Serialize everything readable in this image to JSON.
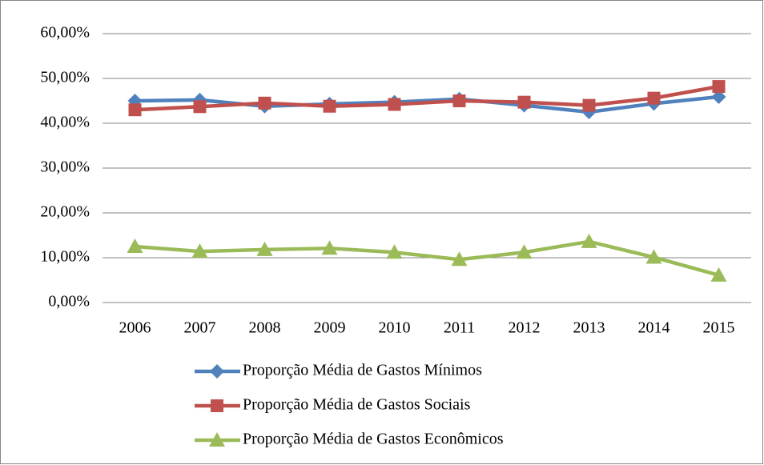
{
  "chart_data": {
    "type": "line",
    "categories": [
      "2006",
      "2007",
      "2008",
      "2009",
      "2010",
      "2011",
      "2012",
      "2013",
      "2014",
      "2015"
    ],
    "series": [
      {
        "name": "Proporção Média de Gastos Mínimos",
        "color": "#4f81bd",
        "marker": "diamond",
        "values": [
          45.0,
          45.2,
          43.8,
          44.3,
          44.7,
          45.4,
          44.0,
          42.5,
          44.4,
          45.9
        ]
      },
      {
        "name": "Proporção Média de Gastos Sociais",
        "color": "#c0504d",
        "marker": "square",
        "values": [
          43.0,
          43.7,
          44.5,
          43.8,
          44.2,
          45.0,
          44.7,
          44.0,
          45.6,
          48.2
        ]
      },
      {
        "name": "Proporção Média de Gastos Econômicos",
        "color": "#9bbb59",
        "marker": "triangle",
        "values": [
          12.5,
          11.4,
          11.8,
          12.1,
          11.2,
          9.6,
          11.2,
          13.6,
          10.1,
          6.1
        ]
      }
    ],
    "ylim": [
      0,
      60
    ],
    "yticks": [
      {
        "value": 0,
        "label": "0,00%"
      },
      {
        "value": 10,
        "label": "10,00%"
      },
      {
        "value": 20,
        "label": "20,00%"
      },
      {
        "value": 30,
        "label": "30,00%"
      },
      {
        "value": 40,
        "label": "40,00%"
      },
      {
        "value": 50,
        "label": "50,00%"
      },
      {
        "value": 60,
        "label": "60,00%"
      }
    ],
    "grid": true,
    "legend": "bottom"
  }
}
